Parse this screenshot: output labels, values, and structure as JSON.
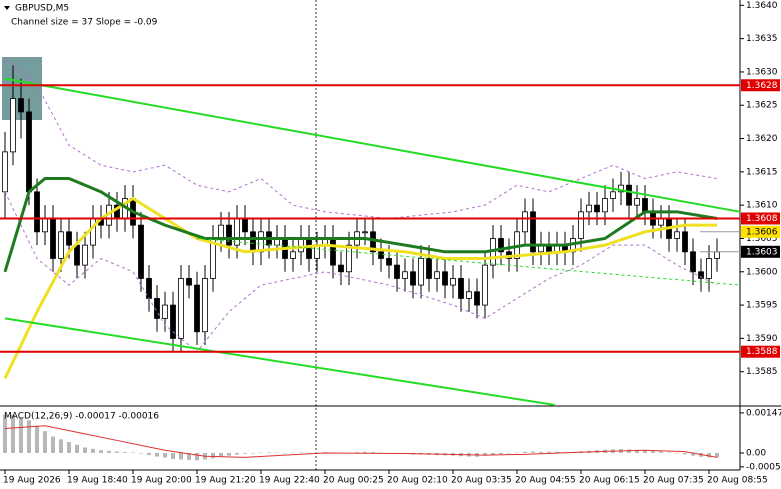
{
  "chart_data": [
    {
      "type": "candlestick",
      "title": "GBPUSD,M5",
      "subtitle": "Channel size = 37 Slope = -0.09",
      "categories": [
        "19 Aug 2026",
        null,
        null,
        null,
        null,
        null,
        null,
        null,
        "19 Aug 18:40",
        null,
        null,
        null,
        null,
        null,
        null,
        null,
        "19 Aug 20:00",
        null,
        null,
        null,
        null,
        null,
        null,
        null,
        "19 Aug 21:20",
        null,
        null,
        null,
        null,
        null,
        null,
        null,
        "19 Aug 22:40",
        null,
        null,
        null,
        null,
        null,
        null,
        null,
        "20 Aug 00:25",
        null,
        null,
        null,
        null,
        null,
        null,
        null,
        "20 Aug 02:10",
        null,
        null,
        null,
        null,
        null,
        null,
        null,
        "20 Aug 03:35",
        null,
        null,
        null,
        null,
        null,
        null,
        null,
        "20 Aug 04:55",
        null,
        null,
        null,
        null,
        null,
        null,
        null,
        "20 Aug 06:15",
        null,
        null,
        null,
        null,
        null,
        null,
        null,
        "20 Aug 07:35",
        null,
        null,
        null,
        null,
        null,
        null,
        null,
        "20 Aug 08:55",
        null
      ],
      "open": [
        1.3612,
        1.3618,
        1.3626,
        1.3624,
        1.3612,
        1.3606,
        1.3608,
        1.3602,
        1.3606,
        1.3604,
        1.3601,
        1.3604,
        1.3608,
        1.3607,
        1.361,
        1.3608,
        1.3611,
        1.3607,
        1.3599,
        1.3596,
        1.3593,
        1.3595,
        1.359,
        1.3599,
        1.3598,
        1.3591,
        1.3599,
        1.3605,
        1.3607,
        1.3604,
        1.3608,
        1.3606,
        1.3603,
        1.3606,
        1.3604,
        1.3605,
        1.3602,
        1.3603,
        1.3605,
        1.3602,
        1.3604,
        1.3605,
        1.3601,
        1.36,
        1.3604,
        1.3606,
        1.3606,
        1.3603,
        1.3602,
        1.3601,
        1.3599,
        1.36,
        1.3598,
        1.3602,
        1.3599,
        1.36,
        1.3598,
        1.3599,
        1.3596,
        1.3597,
        1.3595,
        1.3601,
        1.3605,
        1.3603,
        1.3602,
        1.3606,
        1.3609,
        1.3603,
        1.3604,
        1.3603,
        1.3604,
        1.3603,
        1.3605,
        1.3609,
        1.361,
        1.3609,
        1.3611,
        1.3612,
        1.3613,
        1.361,
        1.3611,
        1.3609,
        1.3607,
        1.3608,
        1.3605,
        1.3606,
        1.3603,
        1.36,
        1.3599,
        1.3602
      ],
      "high": [
        1.3621,
        1.3631,
        1.3629,
        1.3626,
        1.3614,
        1.361,
        1.361,
        1.3608,
        1.3608,
        1.3606,
        1.3606,
        1.361,
        1.361,
        1.3612,
        1.3612,
        1.3613,
        1.3613,
        1.3609,
        1.3601,
        1.3598,
        1.3597,
        1.3597,
        1.3601,
        1.3601,
        1.36,
        1.3601,
        1.3607,
        1.3609,
        1.3609,
        1.361,
        1.361,
        1.3608,
        1.3608,
        1.3608,
        1.3607,
        1.3607,
        1.3605,
        1.3607,
        1.3607,
        1.3606,
        1.3607,
        1.3607,
        1.3603,
        1.3606,
        1.3608,
        1.3608,
        1.3608,
        1.3605,
        1.3604,
        1.3603,
        1.3602,
        1.3602,
        1.3604,
        1.3604,
        1.3602,
        1.3602,
        1.3601,
        1.3601,
        1.3599,
        1.3599,
        1.3603,
        1.3607,
        1.3607,
        1.3605,
        1.3608,
        1.3611,
        1.3611,
        1.3606,
        1.3606,
        1.3606,
        1.3606,
        1.3607,
        1.3611,
        1.3612,
        1.3612,
        1.3613,
        1.3614,
        1.3615,
        1.3615,
        1.3613,
        1.3613,
        1.3611,
        1.361,
        1.361,
        1.3608,
        1.3608,
        1.3605,
        1.3602,
        1.3604,
        1.3605
      ],
      "low": [
        1.3608,
        1.3616,
        1.362,
        1.361,
        1.3604,
        1.3604,
        1.36,
        1.36,
        1.3602,
        1.3599,
        1.3599,
        1.3602,
        1.3605,
        1.3605,
        1.3606,
        1.3606,
        1.3605,
        1.3597,
        1.3594,
        1.3591,
        1.3591,
        1.3588,
        1.3588,
        1.3596,
        1.3589,
        1.3589,
        1.3597,
        1.3603,
        1.3602,
        1.3602,
        1.3604,
        1.3601,
        1.3601,
        1.3602,
        1.3602,
        1.36,
        1.36,
        1.3601,
        1.36,
        1.36,
        1.3602,
        1.3599,
        1.3598,
        1.3598,
        1.3602,
        1.3604,
        1.3601,
        1.36,
        1.3599,
        1.3597,
        1.3597,
        1.3596,
        1.3596,
        1.3597,
        1.3597,
        1.3596,
        1.3596,
        1.3594,
        1.3594,
        1.3593,
        1.3593,
        1.3599,
        1.3601,
        1.36,
        1.36,
        1.3604,
        1.3601,
        1.3601,
        1.3601,
        1.3601,
        1.3601,
        1.3601,
        1.3603,
        1.3607,
        1.3607,
        1.3607,
        1.3609,
        1.361,
        1.3608,
        1.3608,
        1.3607,
        1.3605,
        1.3605,
        1.3603,
        1.3603,
        1.3601,
        1.3598,
        1.3597,
        1.3597,
        1.36
      ],
      "close": [
        1.3618,
        1.3626,
        1.3624,
        1.3612,
        1.3606,
        1.3608,
        1.3602,
        1.3606,
        1.3604,
        1.3601,
        1.3604,
        1.3608,
        1.3607,
        1.361,
        1.3608,
        1.3611,
        1.3607,
        1.3599,
        1.3596,
        1.3593,
        1.3595,
        1.359,
        1.3599,
        1.3598,
        1.3591,
        1.3599,
        1.3605,
        1.3607,
        1.3604,
        1.3608,
        1.3606,
        1.3603,
        1.3606,
        1.3604,
        1.3605,
        1.3602,
        1.3603,
        1.3605,
        1.3602,
        1.3604,
        1.3605,
        1.3601,
        1.36,
        1.3604,
        1.3606,
        1.3606,
        1.3603,
        1.3602,
        1.3601,
        1.3599,
        1.36,
        1.3598,
        1.3602,
        1.3599,
        1.36,
        1.3598,
        1.3599,
        1.3596,
        1.3597,
        1.3595,
        1.3601,
        1.3605,
        1.3603,
        1.3602,
        1.3606,
        1.3609,
        1.3603,
        1.3604,
        1.3603,
        1.3604,
        1.3603,
        1.3605,
        1.3609,
        1.361,
        1.3609,
        1.3611,
        1.3612,
        1.3613,
        1.361,
        1.3611,
        1.3609,
        1.3607,
        1.3608,
        1.3605,
        1.3606,
        1.3603,
        1.36,
        1.3599,
        1.3602,
        1.3603
      ],
      "up_color": "#ffffff",
      "down_color": "#000000",
      "lines": [
        {
          "color": "#f0e020",
          "width": 3,
          "style": "solid",
          "x": [
            0,
            4,
            8,
            12,
            16,
            20,
            24,
            30,
            40,
            50,
            55,
            60,
            70,
            75,
            80,
            85,
            89
          ],
          "values": [
            1.3584,
            1.3594,
            1.3603,
            1.3608,
            1.3611,
            1.3608,
            1.3605,
            1.3603,
            1.3604,
            1.3603,
            1.3602,
            1.3602,
            1.3603,
            1.3604,
            1.3606,
            1.3607,
            1.3607
          ]
        },
        {
          "color": "#1e7a1e",
          "width": 3,
          "style": "solid",
          "x": [
            0,
            3,
            5,
            8,
            12,
            16,
            20,
            25,
            30,
            35,
            40,
            45,
            50,
            55,
            60,
            65,
            70,
            75,
            80,
            84,
            89
          ],
          "values": [
            1.36,
            1.3612,
            1.3614,
            1.3614,
            1.3612,
            1.3609,
            1.3607,
            1.3605,
            1.3605,
            1.3605,
            1.3605,
            1.3605,
            1.3604,
            1.3603,
            1.3603,
            1.3604,
            1.3604,
            1.3605,
            1.3609,
            1.3609,
            1.3608
          ]
        },
        {
          "color": "#b070d0",
          "width": 1,
          "style": "dashed",
          "x": [
            0,
            4,
            8,
            12,
            16,
            20,
            24,
            28,
            32,
            36,
            40,
            48,
            56,
            60,
            64,
            68,
            72,
            76,
            80,
            84,
            89
          ],
          "values": [
            1.3632,
            1.3628,
            1.3619,
            1.3616,
            1.3615,
            1.3616,
            1.3613,
            1.3612,
            1.3614,
            1.361,
            1.3609,
            1.3608,
            1.3609,
            1.361,
            1.3613,
            1.3612,
            1.3614,
            1.3616,
            1.3614,
            1.3615,
            1.3614
          ]
        },
        {
          "color": "#b070d0",
          "width": 1,
          "style": "dashed",
          "x": [
            0,
            4,
            8,
            12,
            16,
            20,
            24,
            28,
            32,
            36,
            40,
            48,
            56,
            60,
            64,
            68,
            72,
            76,
            80,
            84,
            89
          ],
          "values": [
            1.3612,
            1.3602,
            1.3598,
            1.3602,
            1.36,
            1.3592,
            1.3588,
            1.3594,
            1.3598,
            1.3599,
            1.36,
            1.3598,
            1.3595,
            1.3593,
            1.3596,
            1.3599,
            1.3601,
            1.3604,
            1.3604,
            1.3601,
            1.3598
          ]
        },
        {
          "color": "#22dd22",
          "width": 2,
          "style": "solid",
          "x": [
            0,
            91.9
          ],
          "values": [
            1.3629,
            1.3609
          ]
        },
        {
          "color": "#22dd22",
          "width": 2,
          "style": "solid",
          "x": [
            0,
            68.75
          ],
          "values": [
            1.3593,
            1.358
          ]
        },
        {
          "color": "#22dd22",
          "width": 1,
          "style": "dashed",
          "x": [
            24,
            91.9
          ],
          "values": [
            1.3605,
            1.3598
          ]
        }
      ],
      "levels": [
        {
          "value": 1.3628,
          "color": "#e00000"
        },
        {
          "value": 1.3608,
          "color": "#e00000"
        },
        {
          "value": 1.3588,
          "color": "#e00000"
        }
      ],
      "markers": [
        {
          "value": 1.3606,
          "color": "#ffe000",
          "text_color": "#000000"
        },
        {
          "value": 1.3603,
          "color": "#000000",
          "text_color": "#ffffff"
        }
      ],
      "ylim": [
        1.358,
        1.36408
      ],
      "yticks": [
        1.3585,
        {
          "value": 1.359,
          "label": "1.3590"
        },
        1.3595,
        {
          "value": 1.36,
          "label": "1.3600"
        },
        1.3605,
        {
          "value": 1.361,
          "label": "1.3610"
        },
        1.3615,
        {
          "value": 1.362,
          "label": "1.3620"
        },
        1.3625,
        {
          "value": 1.363,
          "label": "1.3630"
        },
        1.3635,
        {
          "value": 1.364,
          "label": "1.3640"
        }
      ],
      "grid": false
    },
    {
      "type": "macd",
      "title": "MACD(12,26,9) -0.00017 -0.00016",
      "values": [
        0.0014,
        0.0014,
        0.0013,
        0.0012,
        0.001,
        0.0008,
        0.0006,
        0.0005,
        0.0004,
        0.0003,
        0.0002,
        0.00015,
        0.0001,
        8e-05,
        5e-05,
        3e-05,
        2e-05,
        -2e-05,
        -8e-05,
        -0.00013,
        -0.00017,
        -0.00022,
        -0.00024,
        -0.00026,
        -0.00027,
        -0.00024,
        -0.0002,
        -0.00014,
        -0.0001,
        -6e-05,
        -3e-05,
        -2e-05,
        1e-05,
        2e-05,
        1e-05,
        0,
        1e-05,
        2e-05,
        1e-05,
        2e-05,
        3e-05,
        1e-05,
        -1e-05,
        1e-05,
        3e-05,
        4e-05,
        3e-05,
        1e-05,
        -1e-05,
        -3e-05,
        -4e-05,
        -6e-05,
        -6e-05,
        -7e-05,
        -8e-05,
        -9e-05,
        -0.0001,
        -0.00012,
        -0.00013,
        -0.00014,
        -0.0001,
        -6e-05,
        -4e-05,
        -2e-05,
        1e-05,
        4e-05,
        5e-05,
        4e-05,
        4e-05,
        4e-05,
        3e-05,
        4e-05,
        6e-05,
        8e-05,
        0.0001,
        0.00012,
        0.00013,
        0.00014,
        0.00013,
        0.00012,
        0.0001,
        7e-05,
        5e-05,
        2e-05,
        -1e-05,
        -5e-05,
        -0.0001,
        -0.00014,
        -0.00016,
        -0.00017
      ],
      "color": "#b8b8b8",
      "signal": {
        "color": "#e03030",
        "x": [
          0,
          5,
          10,
          15,
          20,
          25,
          30,
          35,
          40,
          50,
          60,
          65,
          70,
          75,
          80,
          85,
          89
        ],
        "values": [
          0.0009,
          0.001,
          0.0007,
          0.0004,
          0.0001,
          -0.00012,
          -0.00016,
          -8e-05,
          0,
          -2e-05,
          -8e-05,
          -5e-05,
          1e-05,
          6e-05,
          0.0001,
          5e-05,
          -0.00016
        ]
      },
      "ylim": [
        -0.000625,
        0.00165
      ],
      "yticks": [
        0.00147,
        {
          "value": 0,
          "label": "0.00"
        },
        -0.00051
      ]
    }
  ]
}
